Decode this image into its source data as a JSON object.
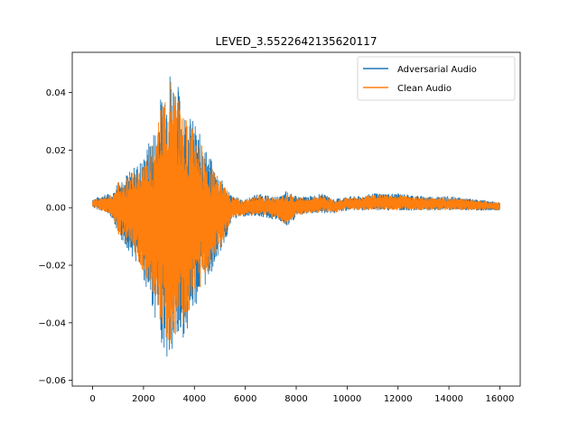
{
  "chart_data": {
    "type": "line",
    "title": "LEVED_3.5522642135620117",
    "xlabel": "",
    "ylabel": "",
    "xlim": [
      -800,
      16800
    ],
    "ylim": [
      -0.062,
      0.054
    ],
    "xticks": [
      0,
      2000,
      4000,
      6000,
      8000,
      10000,
      12000,
      14000,
      16000
    ],
    "xtick_labels": [
      "0",
      "2000",
      "4000",
      "6000",
      "8000",
      "10000",
      "12000",
      "14000",
      "16000"
    ],
    "yticks": [
      -0.06,
      -0.04,
      -0.02,
      0.0,
      0.02,
      0.04
    ],
    "ytick_labels": [
      "−0.06",
      "−0.04",
      "−0.02",
      "0.00",
      "0.02",
      "0.04"
    ],
    "grid": false,
    "legend_position": "upper-right",
    "n_samples": 16000,
    "envelope_x": [
      0,
      300,
      600,
      800,
      1000,
      1500,
      2000,
      2500,
      2800,
      3000,
      3300,
      3600,
      4000,
      4400,
      4800,
      5200,
      5500,
      6000,
      6500,
      7000,
      7400,
      7600,
      7800,
      8000,
      8500,
      9000,
      9500,
      10000,
      10500,
      11000,
      12000,
      13000,
      14000,
      15000,
      16000
    ],
    "envelope_upper": [
      0.003,
      0.004,
      0.005,
      0.005,
      0.01,
      0.013,
      0.018,
      0.03,
      0.045,
      0.05,
      0.045,
      0.035,
      0.03,
      0.022,
      0.014,
      0.008,
      0.004,
      0.003,
      0.005,
      0.004,
      0.004,
      0.006,
      0.005,
      0.004,
      0.004,
      0.005,
      0.003,
      0.004,
      0.004,
      0.005,
      0.005,
      0.004,
      0.004,
      0.003,
      0.002
    ],
    "envelope_lower": [
      0.0,
      -0.001,
      -0.002,
      -0.004,
      -0.01,
      -0.016,
      -0.025,
      -0.04,
      -0.05,
      -0.056,
      -0.05,
      -0.045,
      -0.035,
      -0.028,
      -0.02,
      -0.012,
      -0.004,
      -0.003,
      -0.003,
      -0.004,
      -0.005,
      -0.007,
      -0.006,
      -0.003,
      -0.002,
      -0.002,
      -0.002,
      -0.001,
      -0.001,
      -0.001,
      -0.001,
      -0.001,
      -0.001,
      -0.001,
      -0.001
    ],
    "series": [
      {
        "name": "Adversarial Audio",
        "color": "#1f77b4",
        "scale": 1.0
      },
      {
        "name": "Clean Audio",
        "color": "#ff7f0e",
        "scale": 0.9
      }
    ]
  }
}
